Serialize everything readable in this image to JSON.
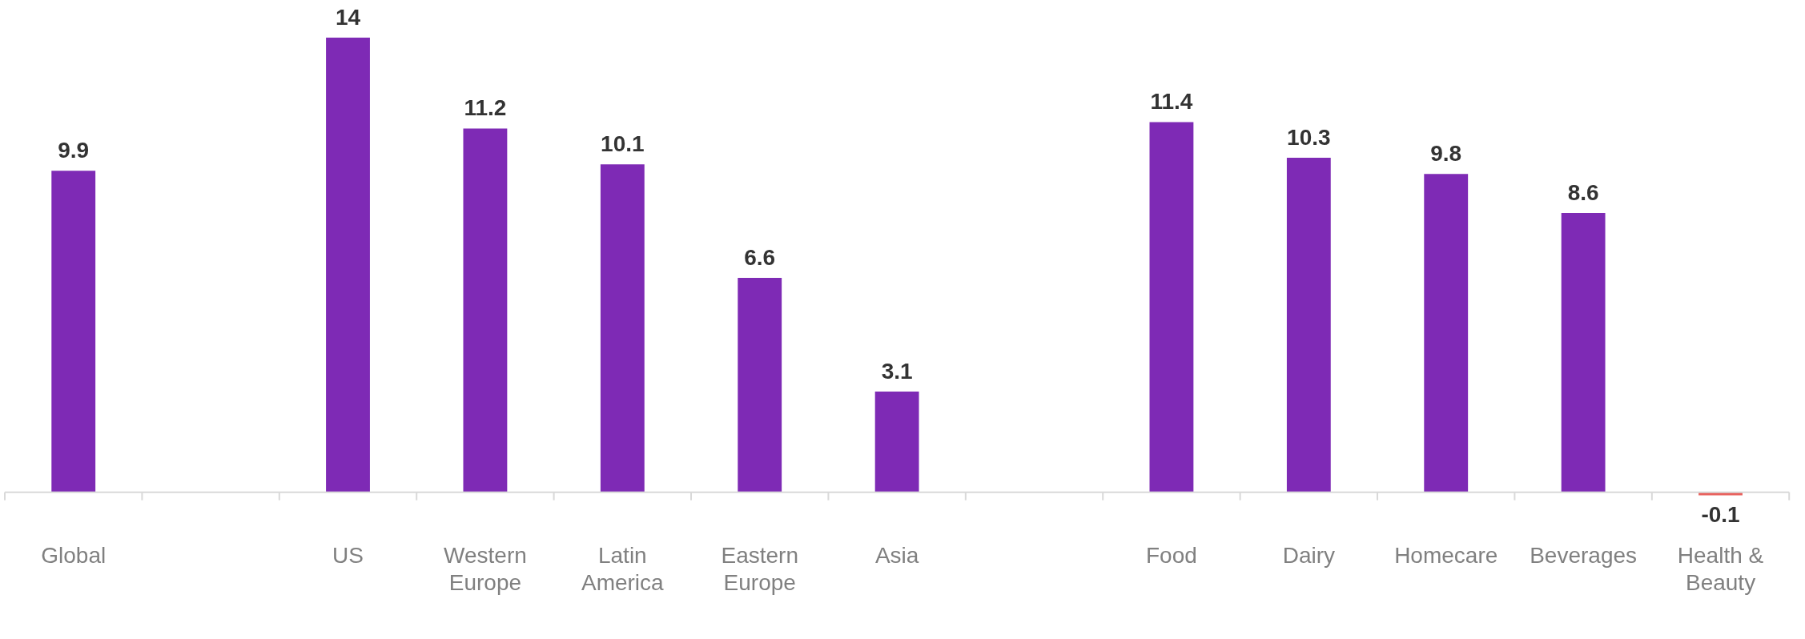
{
  "chart_data": {
    "type": "bar",
    "categories": [
      "Global",
      null,
      "US",
      "Western Europe",
      "Latin America",
      "Eastern Europe",
      "Asia",
      null,
      "Food",
      "Dairy",
      "Homecare",
      "Beverages",
      "Health & Beauty"
    ],
    "values": [
      9.9,
      null,
      14,
      11.2,
      10.1,
      6.6,
      3.1,
      null,
      11.4,
      10.3,
      9.8,
      8.6,
      -0.1
    ],
    "colors": [
      "#7e2ab5",
      null,
      "#7e2ab5",
      "#7e2ab5",
      "#7e2ab5",
      "#7e2ab5",
      "#7e2ab5",
      null,
      "#7e2ab5",
      "#7e2ab5",
      "#7e2ab5",
      "#7e2ab5",
      "#e8605c"
    ],
    "data_labels": true,
    "grid": false,
    "legend": false
  }
}
